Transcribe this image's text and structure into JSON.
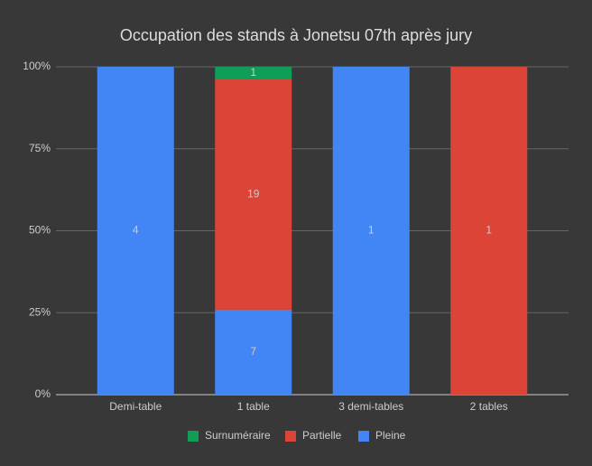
{
  "chart_data": {
    "type": "bar",
    "stack": "percent",
    "title": "Occupation des stands à Jonetsu 07th après jury",
    "categories": [
      "Demi-table",
      "1 table",
      "3 demi-tables",
      "2 tables"
    ],
    "series": [
      {
        "name": "Surnuméraire",
        "color": "#0f9d58",
        "values": [
          null,
          1,
          null,
          null
        ]
      },
      {
        "name": "Partielle",
        "color": "#db4437",
        "values": [
          null,
          19,
          null,
          1
        ]
      },
      {
        "name": "Pleine",
        "color": "#4285f4",
        "values": [
          4,
          7,
          1,
          null
        ]
      }
    ],
    "ylim": [
      0,
      100
    ],
    "yticks": [
      {
        "value": 0,
        "label": "0%"
      },
      {
        "value": 25,
        "label": "25%"
      },
      {
        "value": 50,
        "label": "50%"
      },
      {
        "value": 75,
        "label": "75%"
      },
      {
        "value": 100,
        "label": "100%"
      }
    ],
    "grid": true,
    "legend": "bottom"
  }
}
